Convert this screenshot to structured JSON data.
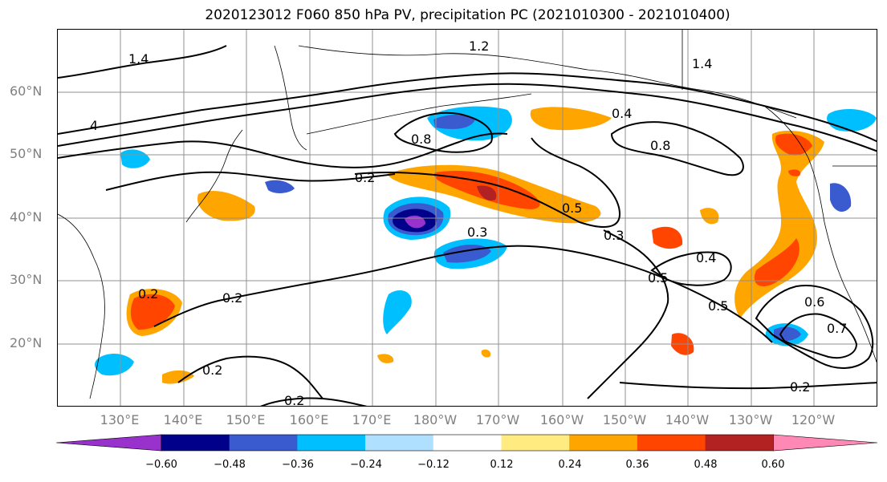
{
  "title": "2020123012 F060 850 hPa PV, precipitation PC (2021010300 - 2021010400)",
  "lat_labels": [
    "60°N",
    "50°N",
    "40°N",
    "30°N",
    "20°N"
  ],
  "lon_labels": [
    "130°E",
    "140°E",
    "150°E",
    "160°E",
    "170°E",
    "180°W",
    "170°W",
    "160°W",
    "150°W",
    "140°W",
    "130°W",
    "120°W"
  ],
  "contour_labels": [
    "0.2",
    "0.2",
    "0.2",
    "0.2",
    "0.2",
    "0.2",
    "0.3",
    "0.3",
    "0.4",
    "0.4",
    "0.5",
    "0.5",
    "0.5",
    "0.6",
    "0.7",
    "0.8",
    "0.8",
    "1.2",
    "1.4",
    "1.4",
    "4"
  ],
  "colorbar": {
    "ticks": [
      "−0.60",
      "−0.48",
      "−0.36",
      "−0.24",
      "−0.12",
      "0.12",
      "0.24",
      "0.36",
      "0.48",
      "0.60"
    ],
    "colors": [
      "#9932cc",
      "#00008b",
      "#3a5acf",
      "#00bfff",
      "#b0e0ff",
      "#ffffff",
      "#ffeb80",
      "#ffa500",
      "#ff4500",
      "#b22222",
      "#ff88b4"
    ]
  }
}
